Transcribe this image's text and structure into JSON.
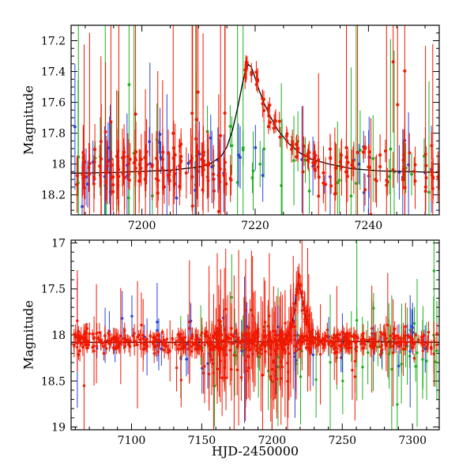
{
  "figure": {
    "background": "#ffffff",
    "colors": {
      "red": "#f01800",
      "green": "#1fae1f",
      "blue": "#2743d9",
      "model": "#000000",
      "axis": "#000000"
    }
  },
  "chart_data": [
    {
      "type": "scatter",
      "panel": "top",
      "title": "",
      "xlabel": "",
      "ylabel": "Magnitude",
      "xlim": [
        7187.5,
        7252.5
      ],
      "ylim": [
        17.1,
        18.33
      ],
      "y_inverted": true,
      "xticks": [
        7200,
        7220,
        7240
      ],
      "yticks": [
        17.2,
        17.4,
        17.6,
        17.8,
        18,
        18.2
      ],
      "x_minor_step": 5,
      "y_minor_step": 0.05,
      "grid": false,
      "legend": "none",
      "model_curve": {
        "name": "microlensing-model",
        "color_key": "model",
        "points": [
          [
            7187.5,
            18.06
          ],
          [
            7195,
            18.055
          ],
          [
            7205,
            18.04
          ],
          [
            7210,
            18.02
          ],
          [
            7212,
            18.0
          ],
          [
            7214,
            17.95
          ],
          [
            7215,
            17.89
          ],
          [
            7216,
            17.78
          ],
          [
            7217,
            17.62
          ],
          [
            7217.8,
            17.47
          ],
          [
            7218.3,
            17.39
          ],
          [
            7218.8,
            17.355
          ],
          [
            7219.3,
            17.37
          ],
          [
            7219.8,
            17.42
          ],
          [
            7220.5,
            17.5
          ],
          [
            7221.5,
            17.6
          ],
          [
            7222.5,
            17.68
          ],
          [
            7224,
            17.78
          ],
          [
            7226,
            17.87
          ],
          [
            7228,
            17.93
          ],
          [
            7230,
            17.97
          ],
          [
            7233,
            18.0
          ],
          [
            7237,
            18.03
          ],
          [
            7242,
            18.045
          ],
          [
            7248,
            18.05
          ],
          [
            7252.5,
            18.055
          ]
        ]
      },
      "series": [
        {
          "name": "green",
          "color_key": "green",
          "r": 1.9,
          "clusters": [
            {
              "x0": 7188.5,
              "x1": 7252,
              "n": 48,
              "clump": true,
              "mag": 18.0,
              "spread": 0.12,
              "err": [
                0.08,
                0.4
              ],
              "big_frac": 0.25,
              "big_err": [
                0.5,
                1.2
              ],
              "big_spread": 0.3
            }
          ]
        },
        {
          "name": "blue",
          "color_key": "blue",
          "r": 1.9,
          "clusters": [
            {
              "x0": 7188,
              "x1": 7252,
              "n": 45,
              "clump": true,
              "mag": 18.02,
              "spread": 0.1,
              "err": [
                0.06,
                0.35
              ],
              "big_frac": 0.2,
              "big_err": [
                0.4,
                1.0
              ],
              "big_spread": 0.25
            }
          ]
        },
        {
          "name": "red",
          "color_key": "red",
          "r": 2.0,
          "clusters": [
            {
              "x0": 7188.5,
              "x1": 7216,
              "n": 170,
              "clump": true,
              "mag": 18.03,
              "spread": 0.07,
              "err": [
                0.04,
                0.22
              ],
              "big_frac": 0.18,
              "big_err": [
                0.45,
                1.3
              ],
              "big_spread": 0.33
            },
            {
              "x0": 7218.2,
              "x1": 7231,
              "n": 60,
              "clump": true,
              "follow_model": true,
              "spread": 0.035,
              "err": [
                0.03,
                0.09
              ],
              "big_frac": 0.06,
              "big_err": [
                0.3,
                0.7
              ],
              "big_spread": 0.1
            },
            {
              "x0": 7231,
              "x1": 7252.3,
              "n": 70,
              "clump": true,
              "mag": 18.03,
              "spread": 0.07,
              "err": [
                0.04,
                0.2
              ],
              "big_frac": 0.15,
              "big_err": [
                0.4,
                1.1
              ],
              "big_spread": 0.3
            }
          ]
        }
      ]
    },
    {
      "type": "scatter",
      "panel": "bottom",
      "title": "",
      "xlabel": "HJD-2450000",
      "ylabel": "Magnitude",
      "xlim": [
        7057,
        7319
      ],
      "ylim": [
        16.97,
        19.03
      ],
      "y_inverted": true,
      "xticks": [
        7100,
        7150,
        7200,
        7250,
        7300
      ],
      "yticks": [
        17,
        17.5,
        18,
        18.5,
        19
      ],
      "x_minor_step": 10,
      "y_minor_step": 0.1,
      "grid": false,
      "legend": "none",
      "model_curve": {
        "name": "microlensing-model",
        "color_key": "model",
        "points": [
          [
            7057,
            18.08
          ],
          [
            7150,
            18.08
          ],
          [
            7200,
            18.07
          ],
          [
            7208,
            18.05
          ],
          [
            7212,
            17.98
          ],
          [
            7214,
            17.9
          ],
          [
            7216,
            17.72
          ],
          [
            7217.5,
            17.55
          ],
          [
            7218.5,
            17.44
          ],
          [
            7219,
            17.42
          ],
          [
            7219.7,
            17.46
          ],
          [
            7221,
            17.58
          ],
          [
            7223,
            17.75
          ],
          [
            7225,
            17.88
          ],
          [
            7228,
            17.99
          ],
          [
            7232,
            18.05
          ],
          [
            7240,
            18.07
          ],
          [
            7319,
            18.08
          ]
        ]
      },
      "series": [
        {
          "name": "green",
          "color_key": "green",
          "r": 1.7,
          "clusters": [
            {
              "x0": 7135,
              "x1": 7318,
              "n": 70,
              "clump": true,
              "mag": 18.12,
              "spread": 0.16,
              "err": [
                0.1,
                0.45
              ],
              "big_frac": 0.2,
              "big_err": [
                0.4,
                0.9
              ],
              "big_spread": 0.28
            }
          ]
        },
        {
          "name": "blue",
          "color_key": "blue",
          "r": 1.7,
          "clusters": [
            {
              "x0": 7059,
              "x1": 7318,
              "n": 55,
              "clump": true,
              "mag": 18.05,
              "spread": 0.12,
              "err": [
                0.08,
                0.35
              ],
              "big_frac": 0.15,
              "big_err": [
                0.3,
                0.8
              ],
              "big_spread": 0.25
            }
          ]
        },
        {
          "name": "red",
          "color_key": "red",
          "r": 1.7,
          "clusters": [
            {
              "x0": 7059,
              "x1": 7318,
              "n": 650,
              "clump": true,
              "mag": 18.07,
              "spread": 0.055,
              "err": [
                0.03,
                0.12
              ],
              "big_frac": 0.07,
              "big_err": [
                0.25,
                0.7
              ],
              "big_spread": 0.18
            },
            {
              "x0": 7150,
              "x1": 7212,
              "n": 90,
              "clump": true,
              "mag": 18.1,
              "spread": 0.2,
              "err": [
                0.15,
                0.55
              ],
              "big_frac": 0.15,
              "big_err": [
                0.5,
                1.0
              ],
              "big_spread": 0.3
            },
            {
              "x0": 7212,
              "x1": 7230,
              "n": 55,
              "clump": true,
              "follow_model": true,
              "spread": 0.06,
              "err": [
                0.05,
                0.25
              ],
              "big_frac": 0.1,
              "big_err": [
                0.4,
                0.9
              ],
              "big_spread": 0.15
            }
          ]
        }
      ]
    }
  ]
}
